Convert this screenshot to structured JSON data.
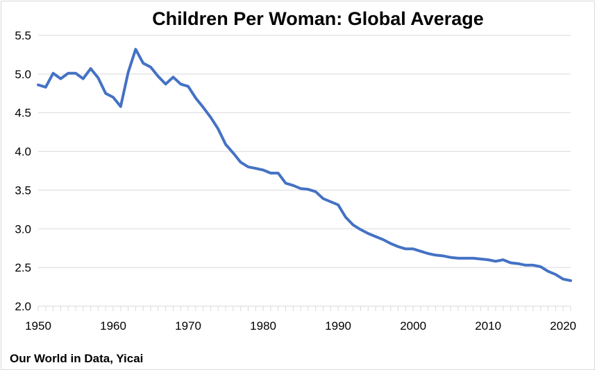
{
  "chart_data": {
    "type": "line",
    "title": "Children Per Woman: Global Average",
    "xlabel": "",
    "ylabel": "",
    "source": "Our World in Data, Yicai",
    "xlim": [
      1950,
      2021
    ],
    "ylim": [
      2.0,
      5.5
    ],
    "x_ticks": [
      1950,
      1960,
      1970,
      1980,
      1990,
      2000,
      2010,
      2020
    ],
    "y_ticks": [
      "2.0",
      "2.5",
      "3.0",
      "3.5",
      "4.0",
      "4.5",
      "5.0",
      "5.5"
    ],
    "grid": "horizontal",
    "legend": "none",
    "line_color": "#4472c4",
    "grid_color": "#d9d9d9",
    "series": [
      {
        "x": [
          1950,
          1951,
          1952,
          1953,
          1954,
          1955,
          1956,
          1957,
          1958,
          1959,
          1960,
          1961,
          1962,
          1963,
          1964,
          1965,
          1966,
          1967,
          1968,
          1969,
          1970,
          1971,
          1972,
          1973,
          1974,
          1975,
          1976,
          1977,
          1978,
          1979,
          1980,
          1981,
          1982,
          1983,
          1984,
          1985,
          1986,
          1987,
          1988,
          1989,
          1990,
          1991,
          1992,
          1993,
          1994,
          1995,
          1996,
          1997,
          1998,
          1999,
          2000,
          2001,
          2002,
          2003,
          2004,
          2005,
          2006,
          2007,
          2008,
          2009,
          2010,
          2011,
          2012,
          2013,
          2014,
          2015,
          2016,
          2017,
          2018,
          2019,
          2020,
          2021
        ],
        "values": [
          4.86,
          4.83,
          5.01,
          4.94,
          5.01,
          5.01,
          4.94,
          5.07,
          4.95,
          4.75,
          4.7,
          4.58,
          5.02,
          5.32,
          5.14,
          5.09,
          4.97,
          4.87,
          4.96,
          4.87,
          4.84,
          4.69,
          4.57,
          4.44,
          4.29,
          4.09,
          3.98,
          3.86,
          3.8,
          3.78,
          3.76,
          3.72,
          3.72,
          3.59,
          3.56,
          3.52,
          3.51,
          3.48,
          3.39,
          3.35,
          3.31,
          3.15,
          3.05,
          2.99,
          2.94,
          2.9,
          2.86,
          2.81,
          2.77,
          2.74,
          2.74,
          2.71,
          2.68,
          2.66,
          2.65,
          2.63,
          2.62,
          2.62,
          2.62,
          2.61,
          2.6,
          2.58,
          2.6,
          2.56,
          2.55,
          2.53,
          2.53,
          2.51,
          2.45,
          2.41,
          2.35,
          2.33
        ]
      }
    ]
  }
}
